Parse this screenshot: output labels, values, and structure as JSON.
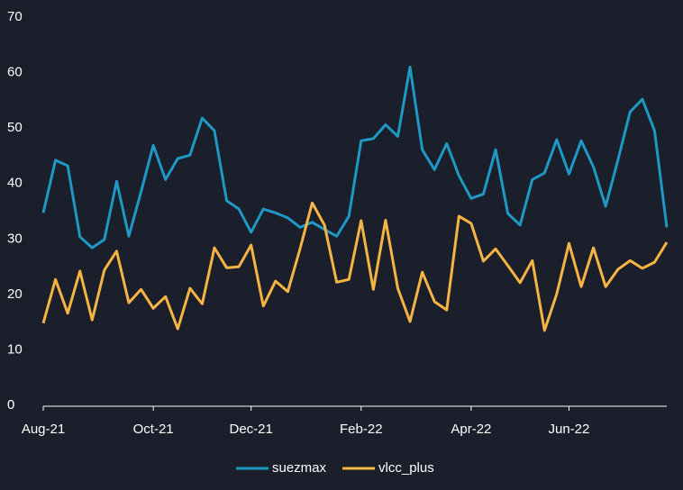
{
  "chart_data": {
    "type": "line",
    "categories": [
      "Aug-21",
      null,
      null,
      null,
      null,
      null,
      null,
      null,
      null,
      "Oct-21",
      null,
      null,
      null,
      null,
      null,
      null,
      null,
      "Dec-21",
      null,
      null,
      null,
      null,
      null,
      null,
      null,
      null,
      "Feb-22",
      null,
      null,
      null,
      null,
      null,
      null,
      null,
      null,
      "Apr-22",
      null,
      null,
      null,
      null,
      null,
      null,
      null,
      "Jun-22",
      null,
      null,
      null,
      null,
      null,
      null,
      null,
      null
    ],
    "series": [
      {
        "name": "suezmax",
        "color": "#1e98c4",
        "values": [
          34.7,
          44.2,
          43.2,
          30.4,
          28.4,
          29.9,
          40.4,
          30.5,
          38.5,
          46.9,
          40.7,
          44.5,
          45.1,
          51.8,
          49.5,
          36.9,
          35.4,
          31.2,
          35.4,
          34.7,
          33.8,
          32.1,
          33.0,
          31.7,
          30.5,
          34.1,
          47.7,
          48.1,
          50.6,
          48.5,
          61.0,
          46.1,
          42.5,
          47.2,
          41.4,
          37.3,
          38.1,
          46.1,
          34.6,
          32.5,
          40.7,
          41.9,
          47.9,
          41.7,
          47.7,
          43.0,
          35.9,
          44.2,
          52.9,
          55.2,
          49.5,
          32.1
        ]
      },
      {
        "name": "vlcc_plus",
        "color": "#f6b443",
        "values": [
          14.8,
          22.7,
          16.6,
          24.2,
          15.4,
          24.4,
          27.8,
          18.5,
          20.9,
          17.5,
          19.6,
          13.8,
          21.1,
          18.3,
          28.4,
          24.8,
          25.0,
          28.9,
          17.9,
          22.4,
          20.5,
          28.2,
          36.5,
          32.5,
          22.2,
          22.7,
          33.3,
          20.9,
          33.4,
          21.1,
          15.1,
          24.0,
          18.7,
          17.2,
          34.1,
          32.8,
          26.0,
          28.2,
          25.2,
          22.1,
          26.1,
          13.5,
          20.1,
          29.2,
          21.4,
          28.4,
          21.4,
          24.5,
          26.1,
          24.7,
          25.8,
          29.4
        ]
      }
    ],
    "ylim": [
      0,
      70
    ],
    "yticks": [
      0,
      10,
      20,
      30,
      40,
      50,
      60,
      70
    ],
    "legend": "bottom",
    "grid": false
  }
}
